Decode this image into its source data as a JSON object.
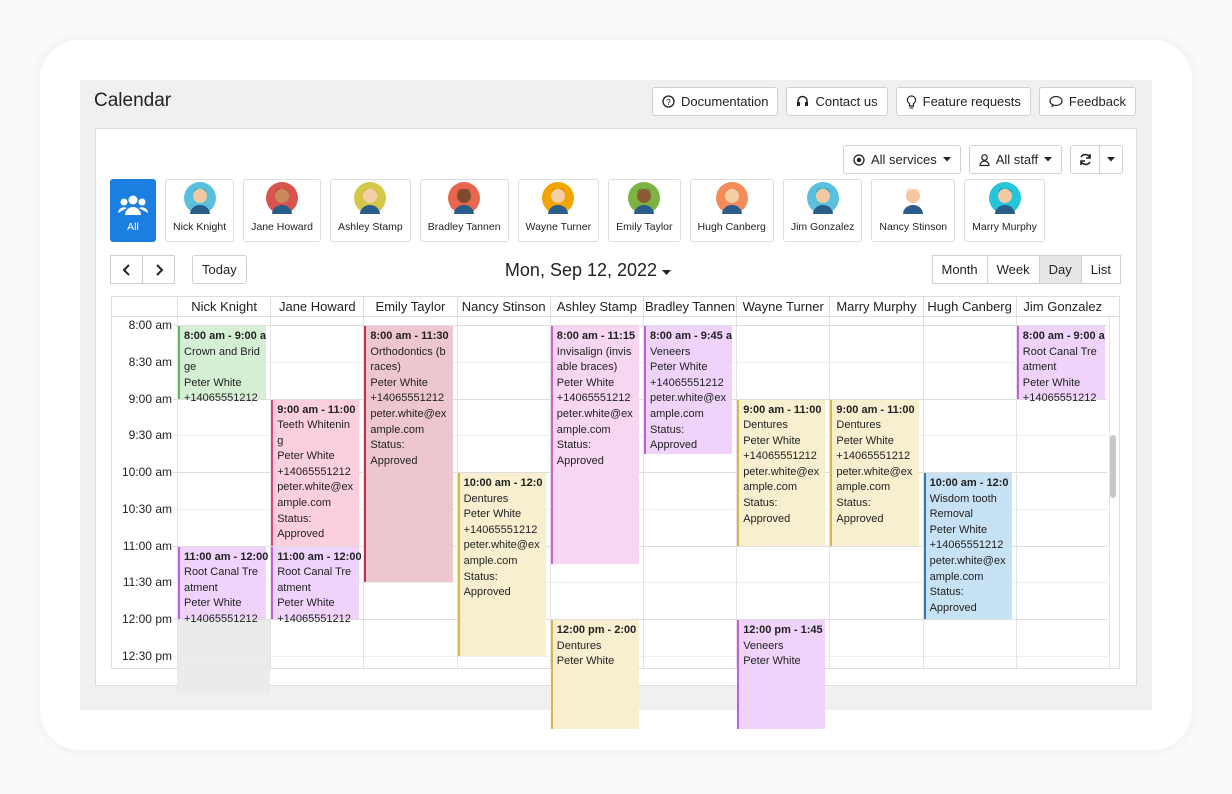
{
  "header": {
    "title": "Calendar",
    "buttons": [
      "Documentation",
      "Contact us",
      "Feature requests",
      "Feedback"
    ]
  },
  "filters": [
    "All services",
    "All staff"
  ],
  "staff_tabs": [
    "All",
    "Nick Knight",
    "Jane Howard",
    "Ashley Stamp",
    "Bradley Tannen",
    "Wayne Turner",
    "Emily Taylor",
    "Hugh Canberg",
    "Jim Gonzalez",
    "Nancy Stinson",
    "Marry Murphy"
  ],
  "toolbar": {
    "today": "Today",
    "date": "Mon, Sep 12, 2022",
    "views": [
      "Month",
      "Week",
      "Day",
      "List"
    ]
  },
  "times": [
    "8:00 am",
    "8:30 am",
    "9:00 am",
    "9:30 am",
    "10:00 am",
    "10:30 am",
    "11:00 am",
    "11:30 am",
    "12:00 pm",
    "12:30 pm"
  ],
  "columns": [
    {
      "name": "Nick Knight",
      "events": [
        {
          "title": "8:00 am - 9:00 a",
          "lines": [
            "Crown and Bridge",
            "Peter White",
            "+14065551212"
          ]
        },
        {
          "title": "11:00 am - 12:00",
          "lines": [
            "Root Canal Treatment",
            "Peter White",
            "+14065551212"
          ]
        }
      ]
    },
    {
      "name": "Jane Howard",
      "events": [
        {
          "title": "9:00 am - 11:00",
          "lines": [
            "Teeth Whitening",
            "Peter White",
            "+14065551212",
            "peter.white@example.com",
            "Status:",
            "Approved"
          ]
        },
        {
          "title": "11:00 am - 12:00",
          "lines": [
            "Root Canal Treatment",
            "Peter White",
            "+14065551212"
          ]
        }
      ]
    },
    {
      "name": "Emily Taylor",
      "events": [
        {
          "title": "8:00 am - 11:30",
          "lines": [
            "Orthodontics (braces)",
            "Peter White",
            "+14065551212",
            "peter.white@example.com",
            "Status:",
            "Approved"
          ]
        }
      ]
    },
    {
      "name": "Nancy Stinson",
      "events": [
        {
          "title": "10:00 am - 12:0",
          "lines": [
            "Dentures",
            "Peter White",
            "+14065551212",
            "peter.white@example.com",
            "Status:",
            "Approved"
          ]
        }
      ]
    },
    {
      "name": "Ashley Stamp",
      "events": [
        {
          "title": "8:00 am - 11:15",
          "lines": [
            "Invisalign (invisable braces)",
            "Peter White",
            "+14065551212",
            "peter.white@example.com",
            "Status:",
            "Approved"
          ]
        },
        {
          "title": "12:00 pm - 2:00",
          "lines": [
            "Dentures",
            "Peter White"
          ]
        }
      ]
    },
    {
      "name": "Bradley Tannen",
      "events": [
        {
          "title": "8:00 am - 9:45 a",
          "lines": [
            "Veneers",
            "Peter White",
            "+14065551212",
            "peter.white@example.com",
            "Status:",
            "Approved"
          ]
        }
      ]
    },
    {
      "name": "Wayne Turner",
      "events": [
        {
          "title": "9:00 am - 11:00",
          "lines": [
            "Dentures",
            "Peter White",
            "+14065551212",
            "peter.white@example.com",
            "Status:",
            "Approved"
          ]
        },
        {
          "title": "12:00 pm - 1:45",
          "lines": [
            "Veneers",
            "Peter White"
          ]
        }
      ]
    },
    {
      "name": "Marry Murphy",
      "events": [
        {
          "title": "9:00 am - 11:00",
          "lines": [
            "Dentures",
            "Peter White",
            "+14065551212",
            "peter.white@example.com",
            "Status:",
            "Approved"
          ]
        }
      ]
    },
    {
      "name": "Hugh Canberg",
      "events": [
        {
          "title": "10:00 am - 12:0",
          "lines": [
            "Wisdom tooth Removal",
            "Peter White",
            "+14065551212",
            "peter.white@example.com",
            "Status:",
            "Approved"
          ]
        }
      ]
    },
    {
      "name": "Jim Gonzalez",
      "events": [
        {
          "title": "8:00 am - 9:00 a",
          "lines": [
            "Root Canal Treatment",
            "Peter White",
            "+14065551212"
          ]
        }
      ]
    }
  ]
}
